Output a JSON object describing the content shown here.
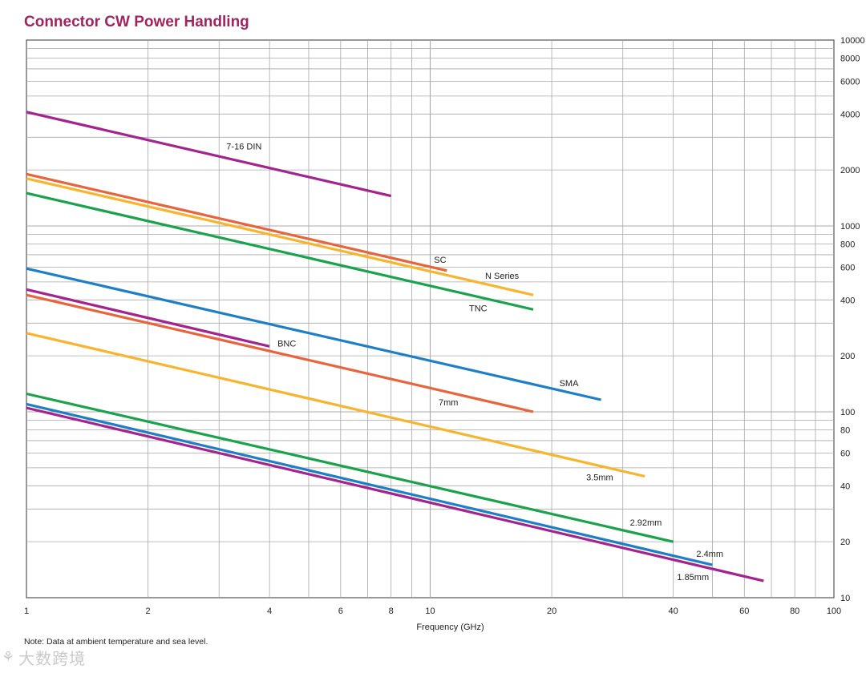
{
  "page": {
    "title": "Connector CW Power Handling",
    "note": "Note: Data at ambient temperature and sea level.",
    "watermark_text": "大数跨境",
    "watermark_icon": "swirl-logo-icon"
  },
  "colors": {
    "title": "#a0245e",
    "purple": "#a3238f",
    "orange": "#e8643c",
    "yellow": "#f7b42c",
    "green": "#1aa24c",
    "blue": "#1e7fc6",
    "grid": "#a8a8a8"
  },
  "chart_data": {
    "type": "line",
    "title": "Connector CW Power Handling",
    "xlabel": "Frequency (GHz)",
    "ylabel": "",
    "xscale": "log",
    "yscale": "log",
    "xlim": [
      1,
      100
    ],
    "ylim": [
      10,
      10000
    ],
    "grid": true,
    "legend": "inline labels",
    "x_ticks": [
      {
        "value": 1,
        "label": "1"
      },
      {
        "value": 2,
        "label": "2"
      },
      {
        "value": 4,
        "label": "4"
      },
      {
        "value": 6,
        "label": "6"
      },
      {
        "value": 8,
        "label": "8"
      },
      {
        "value": 10,
        "label": "10"
      },
      {
        "value": 20,
        "label": "20"
      },
      {
        "value": 40,
        "label": "40"
      },
      {
        "value": 60,
        "label": "60"
      },
      {
        "value": 80,
        "label": "80"
      },
      {
        "value": 100,
        "label": "100"
      }
    ],
    "y_ticks": [
      {
        "value": 10,
        "label": "10"
      },
      {
        "value": 20,
        "label": "20"
      },
      {
        "value": 40,
        "label": "40"
      },
      {
        "value": 60,
        "label": "60"
      },
      {
        "value": 80,
        "label": "80"
      },
      {
        "value": 100,
        "label": "100"
      },
      {
        "value": 200,
        "label": "200"
      },
      {
        "value": 400,
        "label": "400"
      },
      {
        "value": 600,
        "label": "600"
      },
      {
        "value": 800,
        "label": "800"
      },
      {
        "value": 1000,
        "label": "1000"
      },
      {
        "value": 2000,
        "label": "2000"
      },
      {
        "value": 4000,
        "label": "4000"
      },
      {
        "value": 6000,
        "label": "6000"
      },
      {
        "value": 8000,
        "label": "8000"
      },
      {
        "value": 10000,
        "label": "10000"
      }
    ],
    "series": [
      {
        "name": "7-16 DIN",
        "color": "#a3238f",
        "x": [
          1,
          8
        ],
        "y": [
          4100,
          1450
        ]
      },
      {
        "name": "SC",
        "color": "#e8643c",
        "x": [
          1,
          11
        ],
        "y": [
          1900,
          575
        ]
      },
      {
        "name": "N Series",
        "color": "#f7b42c",
        "x": [
          1,
          18
        ],
        "y": [
          1800,
          425
        ]
      },
      {
        "name": "TNC",
        "color": "#1aa24c",
        "x": [
          1,
          18
        ],
        "y": [
          1500,
          355
        ]
      },
      {
        "name": "SMA",
        "color": "#1e7fc6",
        "x": [
          1,
          26.5
        ],
        "y": [
          590,
          116
        ]
      },
      {
        "name": "BNC",
        "color": "#a3238f",
        "x": [
          1,
          4
        ],
        "y": [
          455,
          225
        ]
      },
      {
        "name": "7mm",
        "color": "#e8643c",
        "x": [
          1,
          18
        ],
        "y": [
          425,
          100
        ]
      },
      {
        "name": "3.5mm",
        "color": "#f7b42c",
        "x": [
          1,
          34
        ],
        "y": [
          265,
          45
        ]
      },
      {
        "name": "2.92mm",
        "color": "#1aa24c",
        "x": [
          1,
          40
        ],
        "y": [
          125,
          20
        ]
      },
      {
        "name": "2.4mm",
        "color": "#1e7fc6",
        "x": [
          1,
          50
        ],
        "y": [
          110,
          15
        ]
      },
      {
        "name": "1.85mm",
        "color": "#a3238f",
        "x": [
          1,
          67
        ],
        "y": [
          105,
          12.3
        ]
      }
    ]
  }
}
